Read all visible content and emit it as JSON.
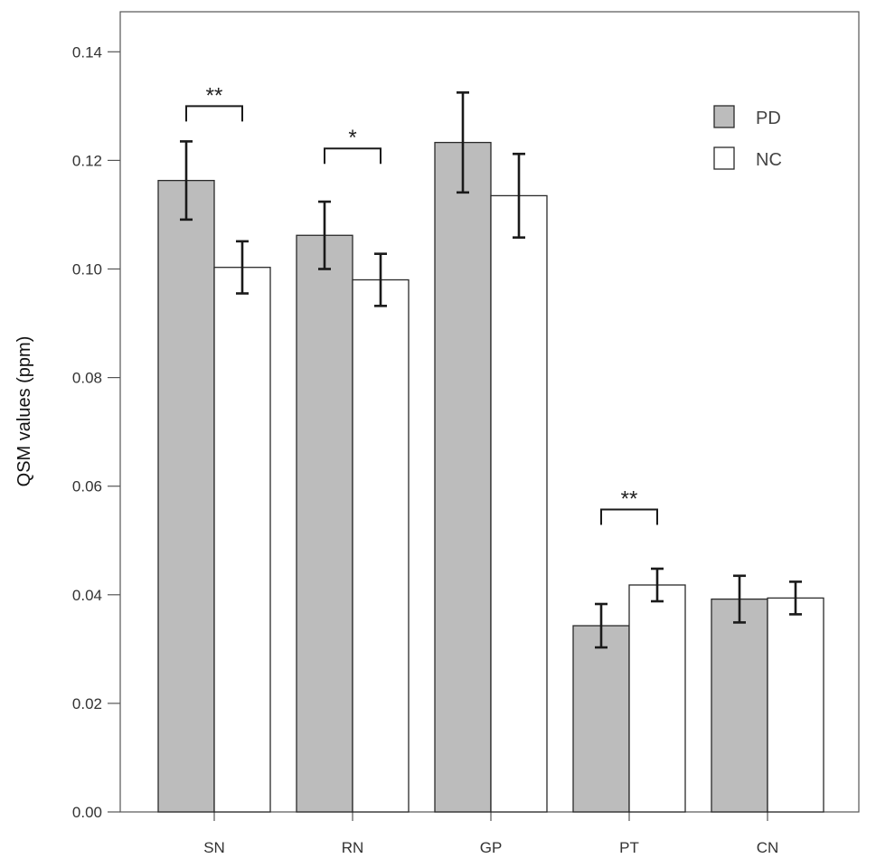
{
  "chart_data": {
    "type": "bar",
    "title": "",
    "xlabel": "",
    "ylabel": "QSM values (ppm)",
    "ylim": [
      0,
      0.148
    ],
    "yticks": [
      "0.00",
      "0.02",
      "0.04",
      "0.06",
      "0.08",
      "0.10",
      "0.12",
      "0.14"
    ],
    "categories": [
      "SN",
      "RN",
      "GP",
      "PT",
      "CN"
    ],
    "series": [
      {
        "name": "PD",
        "color": "#bcbcbc",
        "values": [
          0.1163,
          0.1062,
          0.1233,
          0.0343,
          0.0392
        ],
        "error": [
          0.0072,
          0.0062,
          0.0092,
          0.004,
          0.0043
        ]
      },
      {
        "name": "NC",
        "color": "#ffffff",
        "values": [
          0.1003,
          0.098,
          0.1135,
          0.0418,
          0.0394
        ],
        "error": [
          0.0048,
          0.0048,
          0.0077,
          0.003,
          0.003
        ]
      }
    ],
    "significance": [
      {
        "category": "SN",
        "label": "**",
        "level": 0.13
      },
      {
        "category": "RN",
        "label": "*",
        "level": 0.1222
      },
      {
        "category": "PT",
        "label": "**",
        "level": 0.0557
      }
    ],
    "legend": {
      "placement": "top-right"
    },
    "grid": false
  }
}
